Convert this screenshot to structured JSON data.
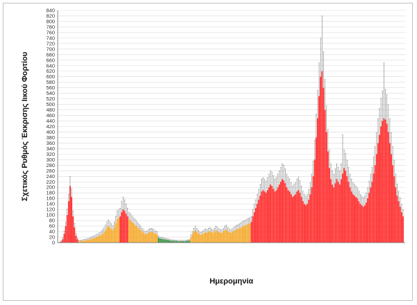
{
  "chart_data": {
    "type": "bar",
    "title": "",
    "xlabel": "Ημερομηνία",
    "ylabel": "Σχετικός Ρυθμός Έκκρισης Ιικού Φορτίου",
    "ylim": [
      0,
      840
    ],
    "yticks": [
      0,
      20,
      40,
      60,
      80,
      100,
      120,
      140,
      160,
      180,
      200,
      220,
      240,
      260,
      280,
      300,
      320,
      340,
      360,
      380,
      400,
      420,
      440,
      460,
      480,
      500,
      520,
      540,
      560,
      580,
      600,
      620,
      640,
      660,
      680,
      700,
      720,
      740,
      760,
      780,
      800,
      820,
      840
    ],
    "grid": true,
    "legend": "none",
    "colors": {
      "red": "#ff1f1f",
      "orange": "#f5a623",
      "green": "#2e8b3a",
      "error": "#8c8c8c",
      "grid": "#d9d9d9"
    },
    "series": [
      {
        "name": "",
        "color_key": "red",
        "values": [
          1,
          4,
          12,
          32,
          60,
          100,
          150,
          205,
          165,
          95,
          55,
          25,
          12
        ],
        "errors": [
          1,
          2,
          6,
          10,
          15,
          22,
          25,
          35,
          30,
          20,
          15,
          8,
          5
        ]
      },
      {
        "name": "",
        "color_key": "orange",
        "values": [
          5,
          6,
          6,
          7,
          8,
          9,
          10,
          11,
          13,
          15,
          16,
          18,
          20,
          22,
          25,
          28,
          32,
          38,
          45,
          55,
          60,
          55,
          50,
          45,
          55,
          70,
          85,
          90
        ],
        "errors": [
          3,
          3,
          3,
          4,
          4,
          4,
          5,
          5,
          6,
          7,
          7,
          8,
          9,
          10,
          11,
          12,
          14,
          15,
          18,
          20,
          22,
          20,
          18,
          16,
          20,
          25,
          30,
          30
        ]
      },
      {
        "name": "",
        "color_key": "red",
        "values": [
          95,
          110,
          120,
          115,
          105,
          95
        ],
        "errors": [
          30,
          40,
          45,
          40,
          35,
          30
        ]
      },
      {
        "name": "",
        "color_key": "orange",
        "values": [
          85,
          80,
          75,
          70,
          65,
          60,
          55,
          50,
          45,
          40,
          35,
          30,
          32,
          35,
          38,
          40,
          38,
          35,
          32,
          30
        ],
        "errors": [
          25,
          25,
          22,
          20,
          20,
          18,
          16,
          15,
          14,
          12,
          11,
          10,
          10,
          11,
          12,
          12,
          12,
          11,
          10,
          10
        ]
      },
      {
        "name": "",
        "color_key": "green",
        "values": [
          18,
          15,
          14,
          13,
          12,
          11,
          10,
          9,
          8,
          7,
          7,
          6,
          6,
          5,
          5,
          5,
          5,
          5,
          5,
          6,
          7,
          8
        ],
        "errors": [
          6,
          5,
          5,
          5,
          4,
          4,
          4,
          4,
          3,
          3,
          3,
          3,
          3,
          3,
          3,
          3,
          3,
          3,
          3,
          3,
          3,
          3
        ]
      },
      {
        "name": "",
        "color_key": "orange",
        "values": [
          20,
          30,
          40,
          45,
          40,
          35,
          30,
          28,
          32,
          35,
          38,
          36,
          40,
          42,
          38,
          35,
          40,
          45,
          42,
          38,
          36,
          35,
          40,
          45,
          48,
          42,
          38,
          35,
          38,
          42,
          45,
          48,
          50,
          52,
          55,
          58,
          60,
          62,
          65,
          68,
          70
        ],
        "errors": [
          8,
          10,
          12,
          14,
          12,
          10,
          10,
          9,
          10,
          11,
          12,
          11,
          12,
          12,
          11,
          10,
          12,
          14,
          13,
          12,
          11,
          11,
          12,
          14,
          15,
          13,
          12,
          11,
          12,
          13,
          14,
          15,
          15,
          16,
          17,
          18,
          18,
          19,
          20,
          20,
          20
        ]
      },
      {
        "name": "",
        "color_key": "red",
        "values": [
          75,
          95,
          110,
          125,
          140,
          155,
          170,
          185,
          190,
          185,
          180,
          190,
          200,
          210,
          205,
          195,
          185,
          190,
          200,
          210,
          220,
          230,
          225,
          215,
          200,
          190,
          185,
          175,
          165,
          170,
          175,
          185,
          190,
          180,
          165,
          150,
          140,
          135,
          140,
          155,
          175,
          200,
          240,
          300,
          380,
          450,
          530,
          600,
          620,
          560,
          480,
          400,
          330,
          270,
          230,
          210,
          200,
          215,
          230,
          220,
          210,
          230,
          250,
          270,
          260,
          240,
          220,
          200,
          185,
          175,
          170,
          165,
          160,
          150,
          140,
          135,
          130,
          135,
          145,
          160,
          180,
          200,
          220,
          250,
          280,
          320,
          360,
          390,
          420,
          440,
          450,
          445,
          430,
          400,
          360,
          320,
          280,
          240,
          200,
          170,
          150,
          130,
          110,
          95
        ],
        "errors": [
          20,
          25,
          28,
          30,
          35,
          38,
          40,
          45,
          45,
          44,
          43,
          45,
          48,
          50,
          49,
          47,
          45,
          46,
          48,
          50,
          52,
          55,
          54,
          52,
          48,
          46,
          45,
          42,
          40,
          41,
          42,
          45,
          46,
          44,
          40,
          36,
          34,
          33,
          34,
          38,
          42,
          48,
          55,
          70,
          85,
          100,
          120,
          140,
          200,
          130,
          110,
          95,
          80,
          65,
          55,
          50,
          48,
          52,
          55,
          52,
          50,
          55,
          140,
          65,
          62,
          58,
          52,
          48,
          45,
          42,
          41,
          40,
          38,
          36,
          34,
          33,
          32,
          33,
          35,
          38,
          42,
          48,
          52,
          60,
          68,
          78,
          88,
          95,
          102,
          108,
          200,
          110,
          105,
          98,
          88,
          78,
          68,
          58,
          48,
          42,
          36,
          32,
          28,
          24
        ]
      }
    ]
  }
}
